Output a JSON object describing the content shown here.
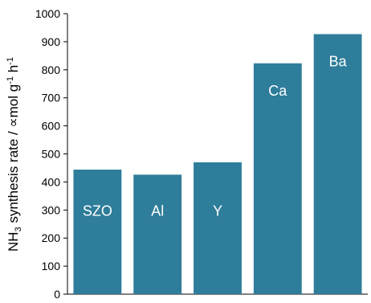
{
  "chart_data": {
    "type": "bar",
    "categories": [
      "SZO",
      "Al",
      "Y",
      "Ca",
      "Ba"
    ],
    "values": [
      444,
      426,
      470,
      823,
      927
    ],
    "title": "",
    "xlabel": "",
    "ylabel": {
      "prefix": "NH",
      "sub": "3",
      "mid": " synthesis rate / ∝mol g",
      "sup1": "-1",
      "mid2": " h",
      "sup2": "-1"
    },
    "ylim": [
      0,
      1000
    ],
    "yticks": [
      0,
      100,
      200,
      300,
      400,
      500,
      600,
      700,
      800,
      900,
      1000
    ],
    "bar_color": "#2e7d9a",
    "label_color": "#ffffff",
    "label_position": "inside",
    "grid": false,
    "legend": "none"
  }
}
